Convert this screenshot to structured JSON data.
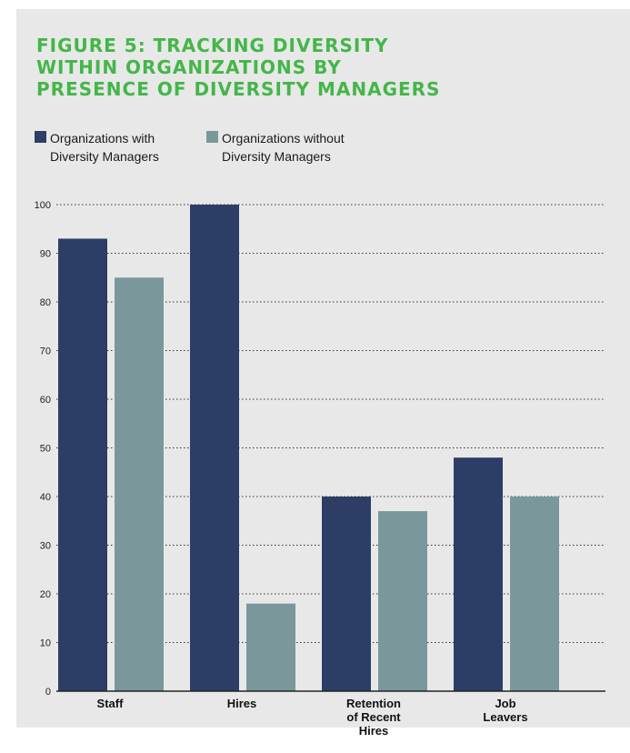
{
  "title_lines": [
    "FIGURE 5: TRACKING DIVERSITY",
    "WITHIN ORGANIZATIONS BY",
    "PRESENCE OF DIVERSITY MANAGERS"
  ],
  "legend": [
    {
      "lines": [
        "Organizations with",
        "Diversity Managers"
      ],
      "color": "#2c3e66"
    },
    {
      "lines": [
        "Organizations without",
        "Diversity Managers"
      ],
      "color": "#7a989b"
    }
  ],
  "colors": {
    "title": "#44b649",
    "panel_background": "#e8e8e8",
    "gridline": "#333333"
  },
  "chart_data": {
    "type": "bar",
    "categories": [
      [
        "Staff"
      ],
      [
        "Hires"
      ],
      [
        "Retention",
        "of Recent",
        "Hires"
      ],
      [
        "Job",
        "Leavers"
      ]
    ],
    "series": [
      {
        "name": "Organizations with Diversity Managers",
        "values": [
          93,
          100,
          40,
          48
        ]
      },
      {
        "name": "Organizations without Diversity Managers",
        "values": [
          85,
          18,
          37,
          40
        ]
      }
    ],
    "ylim": [
      0,
      100
    ],
    "yticks": [
      0,
      10,
      20,
      30,
      40,
      50,
      60,
      70,
      80,
      90,
      100
    ],
    "grid": true,
    "grid_style": "dotted",
    "legend_position": "top-left"
  }
}
